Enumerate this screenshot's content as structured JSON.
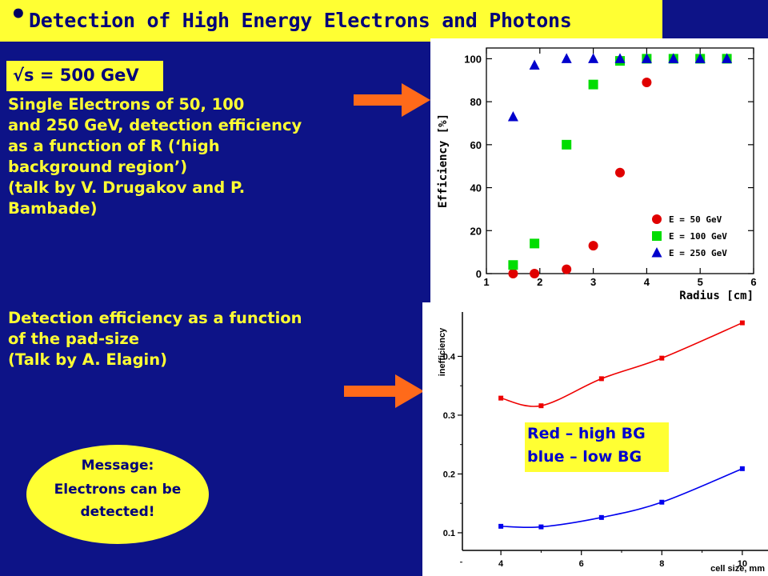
{
  "header": {
    "bullet": "•",
    "title": "Detection of High Energy Electrons and Photons"
  },
  "energy": {
    "label": "√s = 500 GeV"
  },
  "section1": {
    "lines": [
      "Single Electrons of 50, 100",
      "and 250 GeV, detection efficiency",
      "as a function of R (‘high",
      "background region’)",
      "(talk by V. Drugakov and P.",
      "Bambade)"
    ]
  },
  "section2": {
    "lines": [
      "Detection efficiency as a function",
      "of the pad-size",
      "(Talk by A. Elagin)"
    ]
  },
  "message": {
    "lines": [
      "Message:",
      "Electrons can be",
      "detected!"
    ]
  },
  "legend_box": {
    "lines": [
      "Red – high BG",
      "blue – low BG"
    ]
  },
  "colors": {
    "background": "#0d1387",
    "highlight": "#ffff33",
    "arrow": "#ff6a1a"
  },
  "chart_data": [
    {
      "type": "scatter",
      "xlabel": "Radius [cm]",
      "ylabel": "Efficiency [%]",
      "xlim": [
        1,
        6
      ],
      "ylim": [
        0,
        105
      ],
      "xticks": [
        1,
        2,
        3,
        4,
        5,
        6
      ],
      "yticks": [
        0,
        20,
        40,
        60,
        80,
        100
      ],
      "legend_position": "bottom-right",
      "series": [
        {
          "name": "E = 50 GeV",
          "color": "#e00000",
          "marker": "circle",
          "x": [
            1.5,
            1.9,
            2.5,
            3.0,
            3.5,
            4.0
          ],
          "y": [
            0,
            0,
            2,
            13,
            47,
            89
          ]
        },
        {
          "name": "E = 100 GeV",
          "color": "#00dd00",
          "marker": "square",
          "x": [
            1.5,
            1.9,
            2.5,
            3.0,
            3.5,
            4.0,
            4.5,
            5.0,
            5.5
          ],
          "y": [
            4,
            14,
            60,
            88,
            99,
            100,
            100,
            100,
            100
          ]
        },
        {
          "name": "E = 250 GeV",
          "color": "#0000cc",
          "marker": "triangle",
          "x": [
            1.5,
            1.9,
            2.5,
            3.0,
            3.5,
            4.0,
            4.5,
            5.0,
            5.5
          ],
          "y": [
            73,
            97,
            100,
            100,
            100,
            100,
            100,
            100,
            100
          ]
        }
      ]
    },
    {
      "type": "line",
      "xlabel": "cell size, mm",
      "ylabel": "inefficiency",
      "xlim": [
        3.6,
        10.4
      ],
      "ylim": [
        0.07,
        0.47
      ],
      "xticks": [
        4,
        6,
        8,
        10
      ],
      "yticks": [
        0.1,
        0.2,
        0.3,
        0.4
      ],
      "series": [
        {
          "color": "#ee0000",
          "x": [
            4,
            5,
            6.5,
            8,
            10
          ],
          "y": [
            0.329,
            0.316,
            0.362,
            0.397,
            0.457
          ]
        },
        {
          "color": "#0000ee",
          "x": [
            4,
            5,
            6.5,
            8,
            10
          ],
          "y": [
            0.111,
            0.11,
            0.126,
            0.152,
            0.209
          ]
        }
      ]
    }
  ]
}
